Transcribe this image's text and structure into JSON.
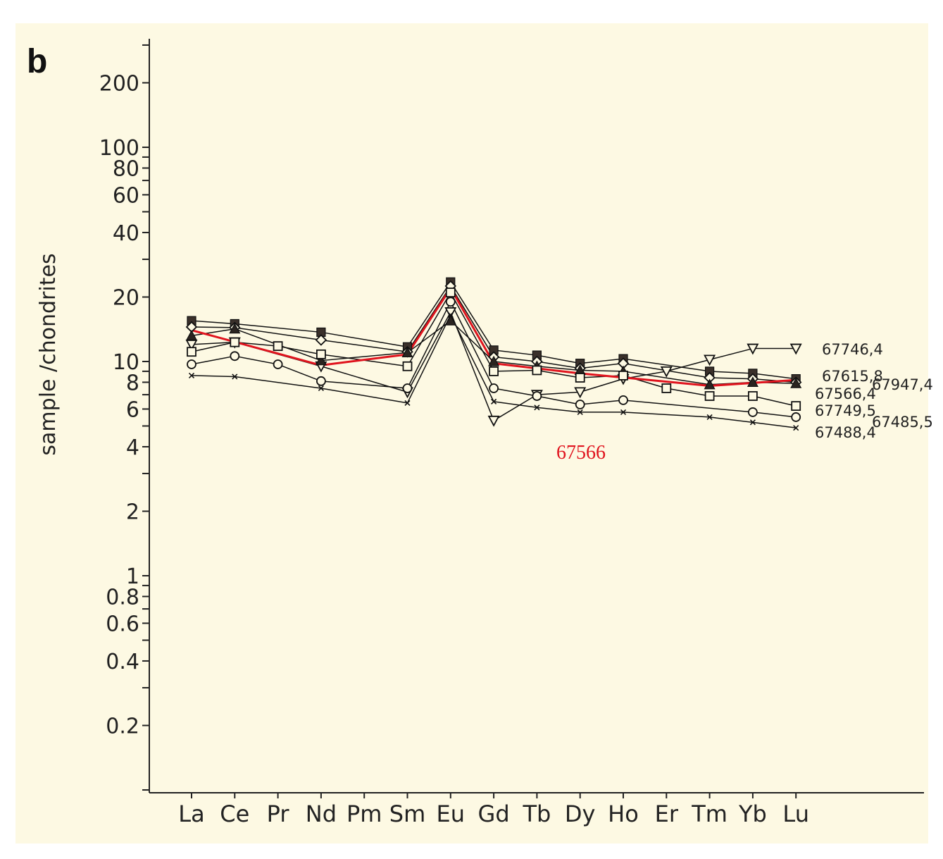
{
  "chart_data": {
    "type": "line",
    "panel_label": "b",
    "ylabel": "sample /chondrites",
    "yscale": "log",
    "ylim": [
      0.1,
      300
    ],
    "yticks_labeled": [
      "200",
      "100",
      "80",
      "60",
      "40",
      "20",
      "10",
      "8",
      "6",
      "4",
      "2",
      "1",
      "0.8",
      "0.6",
      "0.4",
      "0.2"
    ],
    "categories": [
      "La",
      "Ce",
      "Pr",
      "Nd",
      "Pm",
      "Sm",
      "Eu",
      "Gd",
      "Tb",
      "Dy",
      "Ho",
      "Er",
      "Tm",
      "Yb",
      "Lu"
    ],
    "series": [
      {
        "name": "67746,4",
        "marker": "triangle-down-open",
        "color": "#111111",
        "values": [
          12,
          12.3,
          null,
          9.5,
          null,
          7.2,
          17,
          5.3,
          7,
          7.2,
          8.3,
          9.0,
          10.2,
          11.5,
          11.5
        ]
      },
      {
        "name": "67615,8",
        "marker": "square-filled",
        "color": "#111111",
        "values": [
          15.5,
          15,
          null,
          13.7,
          null,
          11.7,
          23.5,
          11.3,
          10.7,
          9.8,
          10.3,
          null,
          9.0,
          8.8,
          8.3
        ]
      },
      {
        "name": "67947,4",
        "marker": "diamond-open",
        "color": "#111111",
        "values": [
          14.5,
          14.4,
          null,
          12.6,
          null,
          11.1,
          22.5,
          10.5,
          10.0,
          9.3,
          9.8,
          null,
          8.4,
          8.3,
          8.0
        ]
      },
      {
        "name": "67566,4",
        "marker": "triangle-up-filled",
        "color": "#111111",
        "values": [
          13.2,
          14.2,
          null,
          10.1,
          null,
          11.0,
          15.5,
          10.0,
          9.5,
          9.1,
          9.0,
          null,
          7.8,
          8.0,
          7.9
        ]
      },
      {
        "name": "67749,5",
        "marker": "square-open",
        "color": "#111111",
        "values": [
          11.1,
          12.3,
          11.8,
          10.8,
          null,
          9.5,
          21,
          9.0,
          9.1,
          8.4,
          8.6,
          7.5,
          6.9,
          6.9,
          6.2
        ]
      },
      {
        "name": "67485,5",
        "marker": "circle-open",
        "color": "#111111",
        "values": [
          9.7,
          10.6,
          9.7,
          8.1,
          null,
          7.5,
          19,
          7.5,
          6.9,
          6.3,
          6.6,
          null,
          null,
          5.8,
          5.5
        ]
      },
      {
        "name": "67488,4",
        "marker": "x",
        "color": "#111111",
        "values": [
          8.6,
          8.5,
          null,
          7.5,
          null,
          6.4,
          16.5,
          6.5,
          6.1,
          5.8,
          5.8,
          null,
          5.5,
          5.2,
          4.9
        ]
      },
      {
        "name": "67566",
        "marker": "none",
        "color": "#e0141e",
        "values": [
          14,
          null,
          null,
          9.6,
          null,
          10.8,
          22,
          9.8,
          null,
          8.8,
          null,
          null,
          7.7,
          null,
          8.2
        ]
      }
    ],
    "annotation": "67566",
    "grid": false,
    "legend": "labels at right end of lines"
  }
}
